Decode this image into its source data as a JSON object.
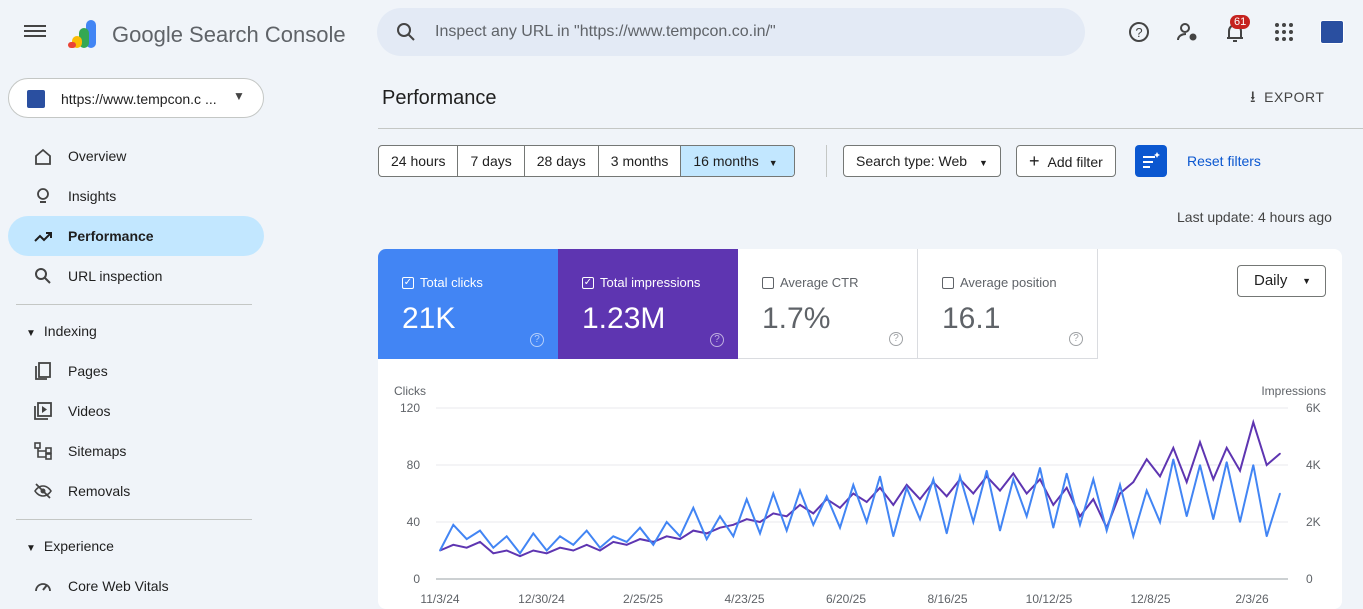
{
  "header": {
    "app_name": "Google Search Console",
    "search_placeholder": "Inspect any URL in \"https://www.tempcon.co.in/\"",
    "notification_count": "61",
    "icons": [
      "menu-icon",
      "help-icon",
      "manage-users-icon",
      "bell-icon",
      "apps-grid-icon",
      "avatar"
    ]
  },
  "sidebar": {
    "property": "https://www.tempcon.c ...",
    "items": [
      {
        "label": "Overview",
        "icon": "home-icon"
      },
      {
        "label": "Insights",
        "icon": "lightbulb-icon"
      },
      {
        "label": "Performance",
        "icon": "trending-up-icon",
        "active": true
      },
      {
        "label": "URL inspection",
        "icon": "search-icon"
      }
    ],
    "sections": [
      {
        "label": "Indexing",
        "items": [
          {
            "label": "Pages",
            "icon": "pages-icon"
          },
          {
            "label": "Videos",
            "icon": "video-icon"
          },
          {
            "label": "Sitemaps",
            "icon": "sitemap-icon"
          },
          {
            "label": "Removals",
            "icon": "eye-off-icon"
          }
        ]
      },
      {
        "label": "Experience",
        "items": [
          {
            "label": "Core Web Vitals",
            "icon": "gauge-icon"
          }
        ]
      }
    ]
  },
  "main": {
    "title": "Performance",
    "export_label": "EXPORT",
    "date_ranges": [
      "24 hours",
      "7 days",
      "28 days",
      "3 months",
      "16 months"
    ],
    "selected_range": "16 months",
    "search_type": "Search type: Web",
    "add_filter": "Add filter",
    "reset_filters": "Reset filters",
    "last_update": "Last update: 4 hours ago",
    "metrics": [
      {
        "label": "Total clicks",
        "value": "21K",
        "checked": true,
        "color": "#4285f4"
      },
      {
        "label": "Total impressions",
        "value": "1.23M",
        "checked": true,
        "color": "#5e35b1"
      },
      {
        "label": "Average CTR",
        "value": "1.7%",
        "checked": false
      },
      {
        "label": "Average position",
        "value": "16.1",
        "checked": false
      }
    ],
    "granularity": "Daily"
  },
  "chart_data": {
    "type": "line",
    "ylabel": "Clicks",
    "y2label": "Impressions",
    "ylim": [
      0,
      120
    ],
    "y2lim": [
      0,
      6000
    ],
    "yticks": [
      "0",
      "40",
      "80",
      "120"
    ],
    "y2ticks": [
      "0",
      "2K",
      "4K",
      "6K"
    ],
    "xticks": [
      "11/3/24",
      "12/30/24",
      "2/25/25",
      "4/23/25",
      "6/20/25",
      "8/16/25",
      "10/12/25",
      "12/8/25",
      "2/3/26"
    ],
    "grid": true,
    "series": [
      {
        "name": "Clicks",
        "axis": "left",
        "color": "#4285f4",
        "values": [
          20,
          38,
          28,
          34,
          22,
          30,
          18,
          32,
          20,
          30,
          24,
          34,
          22,
          30,
          26,
          36,
          24,
          40,
          30,
          50,
          28,
          44,
          30,
          56,
          32,
          60,
          34,
          62,
          38,
          58,
          36,
          66,
          40,
          72,
          30,
          64,
          42,
          70,
          32,
          72,
          40,
          76,
          34,
          70,
          44,
          78,
          36,
          74,
          38,
          70,
          34,
          66,
          30,
          62,
          40,
          84,
          44,
          80,
          42,
          82,
          40,
          80,
          30,
          60
        ]
      },
      {
        "name": "Impressions",
        "axis": "right",
        "color": "#5e35b1",
        "values": [
          1000,
          1200,
          1100,
          1300,
          900,
          1000,
          800,
          1000,
          900,
          1100,
          1000,
          1200,
          1000,
          1300,
          1200,
          1400,
          1300,
          1500,
          1400,
          1700,
          1600,
          1800,
          1900,
          2100,
          2000,
          2300,
          2200,
          2600,
          2300,
          2800,
          2500,
          3000,
          2700,
          3200,
          2600,
          3300,
          2800,
          3400,
          2900,
          3500,
          3000,
          3600,
          3100,
          3700,
          3000,
          3500,
          2600,
          3200,
          2200,
          2800,
          1800,
          3000,
          3400,
          4200,
          3600,
          4600,
          3400,
          4800,
          3500,
          4600,
          3800,
          5500,
          4000,
          4400
        ]
      }
    ]
  }
}
